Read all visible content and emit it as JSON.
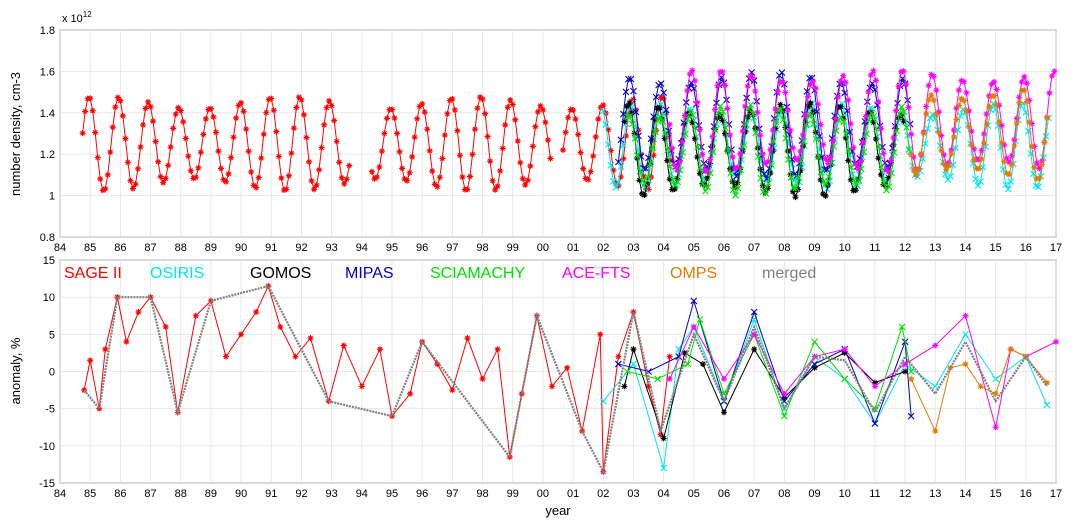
{
  "chart_data": [
    {
      "type": "line",
      "panel": "top",
      "ylabel": "number density, cm-3",
      "xlabel": "",
      "y_exponent_label": "x 10",
      "y_exponent_power": "12",
      "xlim": [
        84,
        17
      ],
      "ylim": [
        0.8,
        1.8
      ],
      "x_ticks": [
        "84",
        "85",
        "86",
        "87",
        "88",
        "89",
        "90",
        "91",
        "92",
        "93",
        "94",
        "95",
        "96",
        "97",
        "98",
        "99",
        "00",
        "01",
        "02",
        "03",
        "04",
        "05",
        "06",
        "07",
        "08",
        "09",
        "10",
        "11",
        "12",
        "13",
        "14",
        "15",
        "16",
        "17"
      ],
      "y_ticks": [
        "0.8",
        "1",
        "1.2",
        "1.4",
        "1.6",
        "1.8"
      ],
      "grid": true,
      "series": [
        {
          "name": "SAGE II",
          "color": "#ff0000",
          "marker": "*",
          "year_start": 1984.75,
          "year_end": 2004.25,
          "mean": 1.25,
          "amplitude": 0.2,
          "phase": 0.3,
          "gaps": [
            [
              1993.6,
              1994.3
            ],
            [
              2000.3,
              2000.6
            ]
          ]
        },
        {
          "name": "OSIRIS",
          "color": "#00e5ee",
          "marker": "x",
          "year_start": 2002.0,
          "year_end": 2016.75,
          "mean": 1.24,
          "amplitude": 0.18,
          "phase": 0.35,
          "gaps": []
        },
        {
          "name": "GOMOS",
          "color": "#000000",
          "marker": "*",
          "year_start": 2002.7,
          "year_end": 2012.0,
          "mean": 1.22,
          "amplitude": 0.2,
          "phase": 0.4,
          "gaps": []
        },
        {
          "name": "MIPAS",
          "color": "#0000cc",
          "marker": "x",
          "year_start": 2002.5,
          "year_end": 2012.2,
          "mean": 1.34,
          "amplitude": 0.23,
          "phase": 0.35,
          "gaps": []
        },
        {
          "name": "SCIAMACHY",
          "color": "#00e000",
          "marker": "x",
          "year_start": 2002.8,
          "year_end": 2012.2,
          "mean": 1.22,
          "amplitude": 0.19,
          "phase": 0.38,
          "gaps": []
        },
        {
          "name": "ACE-FTS",
          "color": "#ff00ff",
          "marker": "*",
          "year_start": 2004.2,
          "year_end": 2017.0,
          "mean": 1.36,
          "amplitude": 0.22,
          "phase": 0.33,
          "gaps": []
        },
        {
          "name": "OMPS",
          "color": "#e07b00",
          "marker": "*",
          "year_start": 2012.2,
          "year_end": 2016.75,
          "mean": 1.3,
          "amplitude": 0.2,
          "phase": 0.36,
          "gaps": []
        }
      ]
    },
    {
      "type": "line",
      "panel": "bottom",
      "ylabel": "anomaly, %",
      "xlabel": "year",
      "xlim": [
        84,
        17
      ],
      "ylim": [
        -15,
        15
      ],
      "x_ticks": [
        "84",
        "85",
        "86",
        "87",
        "88",
        "89",
        "90",
        "91",
        "92",
        "93",
        "94",
        "95",
        "96",
        "97",
        "98",
        "99",
        "00",
        "01",
        "02",
        "03",
        "04",
        "05",
        "06",
        "07",
        "08",
        "09",
        "10",
        "11",
        "12",
        "13",
        "14",
        "15",
        "16",
        "17"
      ],
      "y_ticks": [
        "-15",
        "-10",
        "-5",
        "0",
        "5",
        "10",
        "15"
      ],
      "grid": true,
      "legend": {
        "placement": "top",
        "entries": [
          {
            "label": "SAGE II",
            "color": "#ff0000"
          },
          {
            "label": "OSIRIS",
            "color": "#00e5ee"
          },
          {
            "label": "GOMOS",
            "color": "#000000"
          },
          {
            "label": "MIPAS",
            "color": "#0000cc"
          },
          {
            "label": "SCIAMACHY",
            "color": "#00e000"
          },
          {
            "label": "ACE-FTS",
            "color": "#ff00ff"
          },
          {
            "label": "OMPS",
            "color": "#e07b00"
          },
          {
            "label": "merged",
            "color": "#808080"
          }
        ]
      },
      "series": [
        {
          "name": "SAGE II",
          "color": "#ff0000",
          "marker": "*",
          "year_start": 1984.75,
          "year_end": 2004.25,
          "anomaly_points": [
            [
              1984.8,
              -2.5
            ],
            [
              1985.0,
              1.5
            ],
            [
              1985.3,
              -5.0
            ],
            [
              1985.5,
              3.0
            ],
            [
              1985.9,
              10.0
            ],
            [
              1986.2,
              4.0
            ],
            [
              1986.6,
              8.0
            ],
            [
              1987.0,
              10.0
            ],
            [
              1987.5,
              6.0
            ],
            [
              1987.9,
              -5.5
            ],
            [
              1988.5,
              7.5
            ],
            [
              1989.0,
              9.5
            ],
            [
              1989.5,
              2.0
            ],
            [
              1990.0,
              5.0
            ],
            [
              1990.5,
              8.0
            ],
            [
              1990.9,
              11.5
            ],
            [
              1991.3,
              6.0
            ],
            [
              1991.8,
              2.0
            ],
            [
              1992.3,
              4.5
            ],
            [
              1992.9,
              -4.0
            ],
            [
              1993.4,
              3.5
            ],
            [
              1994.0,
              -2.0
            ],
            [
              1994.6,
              3.0
            ],
            [
              1995.0,
              -6.0
            ],
            [
              1995.6,
              -3.0
            ],
            [
              1996.0,
              4.0
            ],
            [
              1996.5,
              1.0
            ],
            [
              1997.0,
              -2.5
            ],
            [
              1997.5,
              4.5
            ],
            [
              1998.0,
              -1.0
            ],
            [
              1998.5,
              3.0
            ],
            [
              1998.9,
              -11.5
            ],
            [
              1999.3,
              -3.0
            ],
            [
              1999.8,
              7.5
            ],
            [
              2000.3,
              -2.0
            ],
            [
              2000.8,
              0.5
            ],
            [
              2001.3,
              -8.0
            ],
            [
              2001.9,
              5.0
            ],
            [
              2002.0,
              -13.5
            ],
            [
              2002.5,
              2.0
            ],
            [
              2003.0,
              8.0
            ],
            [
              2003.5,
              -2.0
            ],
            [
              2003.9,
              -8.5
            ],
            [
              2004.2,
              2.0
            ]
          ]
        },
        {
          "name": "OSIRIS",
          "color": "#00e5ee",
          "marker": "x",
          "year_start": 2002.0,
          "year_end": 2016.75,
          "anomaly_points": [
            [
              2002.0,
              -4.0
            ],
            [
              2003.0,
              1.0
            ],
            [
              2004.0,
              -13.0
            ],
            [
              2004.5,
              3.0
            ],
            [
              2005.0,
              6.0
            ],
            [
              2006.0,
              -4.0
            ],
            [
              2007.0,
              7.0
            ],
            [
              2008.0,
              -5.0
            ],
            [
              2009.0,
              2.0
            ],
            [
              2010.0,
              -1.0
            ],
            [
              2011.0,
              -7.0
            ],
            [
              2012.0,
              1.0
            ],
            [
              2013.0,
              -2.0
            ],
            [
              2014.0,
              5.0
            ],
            [
              2015.0,
              -1.0
            ],
            [
              2016.0,
              2.0
            ],
            [
              2016.7,
              -4.5
            ]
          ]
        },
        {
          "name": "GOMOS",
          "color": "#000000",
          "marker": "*",
          "year_start": 2002.7,
          "year_end": 2012.0,
          "anomaly_points": [
            [
              2002.7,
              -2.0
            ],
            [
              2003.0,
              3.0
            ],
            [
              2004.0,
              -9.0
            ],
            [
              2004.7,
              2.5
            ],
            [
              2005.3,
              1.0
            ],
            [
              2006.0,
              -5.5
            ],
            [
              2007.0,
              3.0
            ],
            [
              2008.0,
              -3.5
            ],
            [
              2009.0,
              0.5
            ],
            [
              2010.0,
              2.5
            ],
            [
              2011.0,
              -1.5
            ],
            [
              2012.0,
              0.0
            ]
          ]
        },
        {
          "name": "MIPAS",
          "color": "#0000cc",
          "marker": "x",
          "year_start": 2002.5,
          "year_end": 2012.2,
          "anomaly_points": [
            [
              2002.5,
              1.0
            ],
            [
              2003.5,
              0.0
            ],
            [
              2004.5,
              2.0
            ],
            [
              2005.0,
              9.5
            ],
            [
              2006.0,
              -4.0
            ],
            [
              2007.0,
              8.0
            ],
            [
              2008.0,
              -4.0
            ],
            [
              2009.0,
              1.0
            ],
            [
              2010.0,
              3.0
            ],
            [
              2011.0,
              -7.0
            ],
            [
              2012.0,
              4.0
            ],
            [
              2012.2,
              -6.0
            ]
          ]
        },
        {
          "name": "SCIAMACHY",
          "color": "#00e000",
          "marker": "x",
          "year_start": 2002.8,
          "year_end": 2012.2,
          "anomaly_points": [
            [
              2002.8,
              0.0
            ],
            [
              2003.8,
              -1.0
            ],
            [
              2004.8,
              1.0
            ],
            [
              2005.2,
              7.0
            ],
            [
              2006.0,
              -3.0
            ],
            [
              2007.0,
              5.0
            ],
            [
              2008.0,
              -6.0
            ],
            [
              2009.0,
              4.0
            ],
            [
              2010.0,
              -1.0
            ],
            [
              2011.0,
              -5.0
            ],
            [
              2011.9,
              6.0
            ],
            [
              2012.2,
              0.0
            ]
          ]
        },
        {
          "name": "ACE-FTS",
          "color": "#ff00ff",
          "marker": "*",
          "year_start": 2004.2,
          "year_end": 2017.0,
          "anomaly_points": [
            [
              2004.2,
              -1.0
            ],
            [
              2005.0,
              6.0
            ],
            [
              2006.0,
              -1.0
            ],
            [
              2007.0,
              5.0
            ],
            [
              2008.0,
              -3.0
            ],
            [
              2009.0,
              2.0
            ],
            [
              2010.0,
              3.0
            ],
            [
              2011.0,
              -2.0
            ],
            [
              2012.0,
              1.0
            ],
            [
              2013.0,
              3.5
            ],
            [
              2014.0,
              7.5
            ],
            [
              2015.0,
              -7.5
            ],
            [
              2015.5,
              3.0
            ],
            [
              2016.0,
              2.0
            ],
            [
              2017.0,
              4.0
            ]
          ]
        },
        {
          "name": "OMPS",
          "color": "#e07b00",
          "marker": "*",
          "year_start": 2012.2,
          "year_end": 2016.75,
          "anomaly_points": [
            [
              2012.2,
              -1.0
            ],
            [
              2013.0,
              -8.0
            ],
            [
              2013.5,
              0.5
            ],
            [
              2014.0,
              1.0
            ],
            [
              2014.5,
              -2.0
            ],
            [
              2015.0,
              -3.0
            ],
            [
              2015.5,
              3.0
            ],
            [
              2016.0,
              2.0
            ],
            [
              2016.7,
              -1.5
            ]
          ]
        },
        {
          "name": "merged",
          "color": "#808080",
          "marker": "",
          "year_start": 1984.75,
          "year_end": 2016.75,
          "anomaly_points": [
            [
              1984.8,
              -2.5
            ],
            [
              1985.3,
              -5.0
            ],
            [
              1985.9,
              10.0
            ],
            [
              1987.0,
              10.0
            ],
            [
              1987.9,
              -5.5
            ],
            [
              1989.0,
              9.5
            ],
            [
              1990.9,
              11.5
            ],
            [
              1992.9,
              -4.0
            ],
            [
              1995.0,
              -6.0
            ],
            [
              1996.0,
              4.0
            ],
            [
              1998.9,
              -11.5
            ],
            [
              1999.8,
              7.5
            ],
            [
              2001.3,
              -8.0
            ],
            [
              2002.0,
              -13.5
            ],
            [
              2003.0,
              8.0
            ],
            [
              2003.9,
              -8.0
            ],
            [
              2005.0,
              5.0
            ],
            [
              2006.0,
              -4.0
            ],
            [
              2007.0,
              6.0
            ],
            [
              2008.0,
              -5.0
            ],
            [
              2009.0,
              2.0
            ],
            [
              2010.0,
              1.5
            ],
            [
              2011.0,
              -5.5
            ],
            [
              2012.0,
              2.0
            ],
            [
              2013.0,
              -3.0
            ],
            [
              2014.0,
              4.0
            ],
            [
              2015.0,
              -4.0
            ],
            [
              2016.0,
              2.0
            ],
            [
              2016.7,
              -2.0
            ]
          ]
        }
      ]
    }
  ]
}
